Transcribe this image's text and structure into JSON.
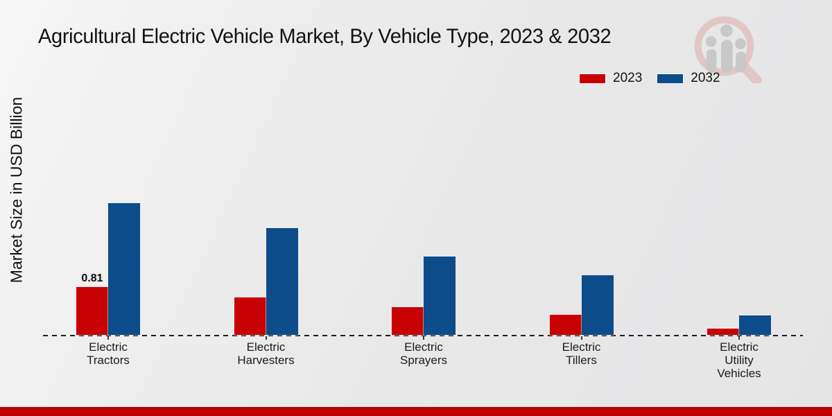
{
  "title": "Agricultural Electric Vehicle Market, By Vehicle Type, 2023 & 2032",
  "y_axis_label": "Market Size in USD Billion",
  "watermark": "magnifier-bar-chart-logo",
  "accent_colors": {
    "series_2023": "#c80202",
    "series_2032": "#0d4c8a",
    "footer_band": "#bd0101",
    "background": "#e9e9ea"
  },
  "chart_data": {
    "type": "bar",
    "title": "Agricultural Electric Vehicle Market, By Vehicle Type, 2023 & 2032",
    "xlabel": "",
    "ylabel": "Market Size in USD Billion",
    "categories": [
      "Electric Tractors",
      "Electric Harvesters",
      "Electric Sprayers",
      "Electric Tillers",
      "Electric Utility Vehicles"
    ],
    "categories_display": [
      "Electric\nTractors",
      "Electric\nHarvesters",
      "Electric\nSprayers",
      "Electric\nTillers",
      "Electric\nUtility\nVehicles"
    ],
    "series": [
      {
        "name": "2023",
        "color": "#c80202",
        "values": [
          0.81,
          0.63,
          0.47,
          0.34,
          0.1
        ],
        "point_labels": [
          "0.81",
          "",
          "",
          "",
          ""
        ]
      },
      {
        "name": "2032",
        "color": "#0d4c8a",
        "values": [
          2.22,
          1.8,
          1.32,
          1.0,
          0.33
        ],
        "point_labels": [
          "",
          "",
          "",
          "",
          ""
        ]
      }
    ],
    "ylim": [
      0,
      2.5
    ],
    "grid": false,
    "y_axis_ticks_visible": false,
    "baseline_style": "dashed",
    "legend_position": "top-right"
  }
}
